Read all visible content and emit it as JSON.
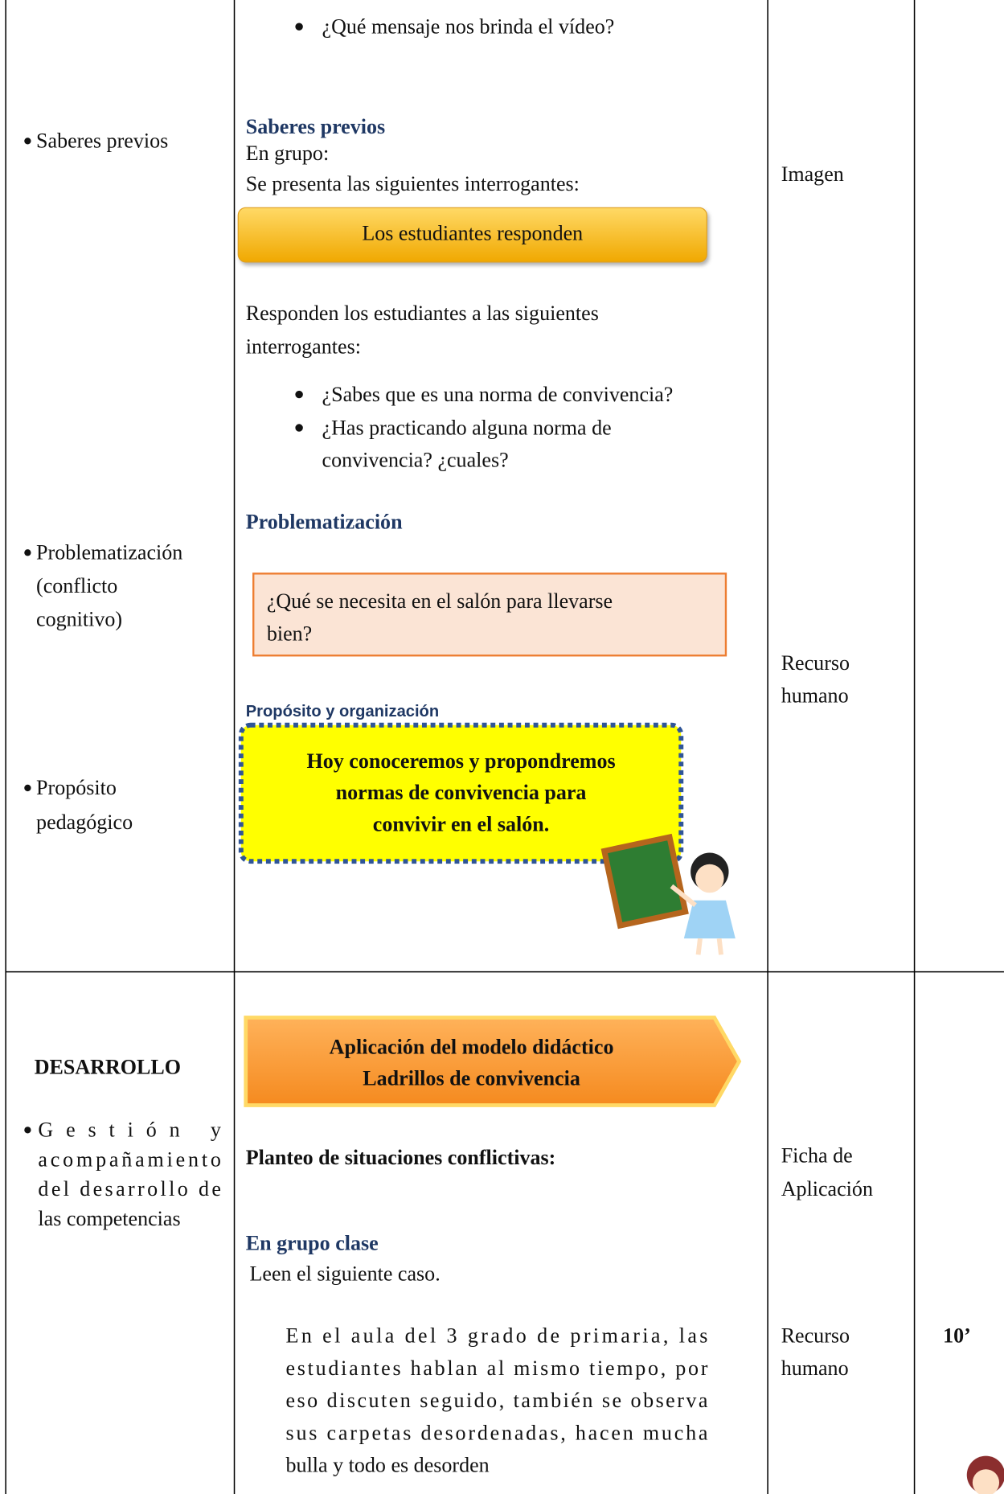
{
  "row1": {
    "phase_items": {
      "saberes": [
        "Saberes previos"
      ],
      "problematizacion": [
        "Problematización",
        "(conflicto",
        "cognitivo)"
      ],
      "proposito": [
        "Propósito",
        "pedagógico"
      ]
    },
    "activities": {
      "video_question": "¿Qué mensaje nos brinda el vídeo?",
      "saberes_heading": "Saberes previos",
      "saberes_lines": [
        "En grupo:",
        "Se presenta las siguientes interrogantes:"
      ],
      "button": "Los estudiantes responden",
      "respond_lines": [
        "Responden los estudiantes a las siguientes",
        "interrogantes:"
      ],
      "questions": [
        [
          "¿Sabes que es una norma de convivencia?"
        ],
        [
          "¿Has practicando alguna norma de",
          "convivencia? ¿cuales?"
        ]
      ],
      "problem_heading": "Problematización",
      "problem_box": [
        "¿Qué se necesita en el salón para llevarse",
        "bien?"
      ],
      "purpose_heading": "Propósito  y  organización",
      "purpose_box": [
        "Hoy conoceremos y propondremos",
        "normas de convivencia para",
        "convivir en el salón."
      ]
    },
    "resources": {
      "imagen": [
        "Imagen"
      ],
      "recurso": [
        "Recurso",
        "humano"
      ]
    }
  },
  "row2": {
    "phase": "DESARROLLO",
    "phase_items": [
      "Gestión y",
      "acompañamiento",
      "del desarrollo de",
      "las competencias"
    ],
    "activities": {
      "arrow": [
        "Aplicación del modelo didáctico",
        "Ladrillos de convivencia"
      ],
      "conflict_heading": "Planteo de situaciones conflictivas:",
      "group_heading": "En grupo clase",
      "instruction": "Leen el siguiente caso.",
      "case_lines": [
        "En el aula del 3 grado  de primaria,  las",
        "estudiantes hablan al mismo tiempo, por",
        "eso  discuten seguido, también se  observa",
        "sus carpetas desordenadas, hacen mucha",
        "bulla y todo es desorden"
      ]
    },
    "resources": {
      "ficha": [
        "Ficha de",
        "Aplicación"
      ],
      "recurso": [
        "Recurso",
        "humano"
      ]
    },
    "time": "10’"
  }
}
